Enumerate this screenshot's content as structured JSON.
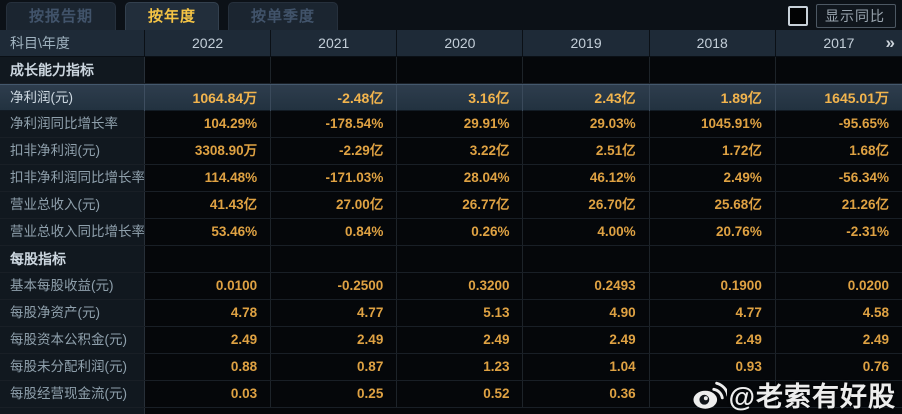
{
  "tabs": [
    {
      "label": "按报告期",
      "active": false
    },
    {
      "label": "按年度",
      "active": true
    },
    {
      "label": "按单季度",
      "active": false
    }
  ],
  "controls": {
    "compare_label": "显示同比",
    "checkbox_checked": false
  },
  "table": {
    "corner_header": "科目\\年度",
    "year_columns": [
      "2022",
      "2021",
      "2020",
      "2019",
      "2018",
      "2017"
    ],
    "more_years_icon": "»",
    "rows": [
      {
        "type": "section",
        "label": "成长能力指标",
        "values": [
          "",
          "",
          "",
          "",
          "",
          ""
        ]
      },
      {
        "type": "data",
        "highlight": true,
        "label": "净利润(元)",
        "values": [
          "1064.84万",
          "-2.48亿",
          "3.16亿",
          "2.43亿",
          "1.89亿",
          "1645.01万"
        ]
      },
      {
        "type": "data",
        "label": "净利润同比增长率",
        "values": [
          "104.29%",
          "-178.54%",
          "29.91%",
          "29.03%",
          "1045.91%",
          "-95.65%"
        ]
      },
      {
        "type": "data",
        "label": "扣非净利润(元)",
        "values": [
          "3308.90万",
          "-2.29亿",
          "3.22亿",
          "2.51亿",
          "1.72亿",
          "1.68亿"
        ]
      },
      {
        "type": "data",
        "label": "扣非净利润同比增长率",
        "values": [
          "114.48%",
          "-171.03%",
          "28.04%",
          "46.12%",
          "2.49%",
          "-56.34%"
        ]
      },
      {
        "type": "data",
        "label": "营业总收入(元)",
        "values": [
          "41.43亿",
          "27.00亿",
          "26.77亿",
          "26.70亿",
          "25.68亿",
          "21.26亿"
        ]
      },
      {
        "type": "data",
        "label": "营业总收入同比增长率",
        "values": [
          "53.46%",
          "0.84%",
          "0.26%",
          "4.00%",
          "20.76%",
          "-2.31%"
        ]
      },
      {
        "type": "section",
        "label": "每股指标",
        "values": [
          "",
          "",
          "",
          "",
          "",
          ""
        ]
      },
      {
        "type": "data",
        "label": "基本每股收益(元)",
        "values": [
          "0.0100",
          "-0.2500",
          "0.3200",
          "0.2493",
          "0.1900",
          "0.0200"
        ]
      },
      {
        "type": "data",
        "label": "每股净资产(元)",
        "values": [
          "4.78",
          "4.77",
          "5.13",
          "4.90",
          "4.77",
          "4.58"
        ]
      },
      {
        "type": "data",
        "label": "每股资本公积金(元)",
        "values": [
          "2.49",
          "2.49",
          "2.49",
          "2.49",
          "2.49",
          "2.49"
        ]
      },
      {
        "type": "data",
        "label": "每股未分配利润(元)",
        "values": [
          "0.88",
          "0.87",
          "1.23",
          "1.04",
          "0.93",
          "0.76"
        ]
      },
      {
        "type": "data",
        "label": "每股经营现金流(元)",
        "values": [
          "0.03",
          "0.25",
          "0.52",
          "0.36",
          "",
          ""
        ]
      }
    ]
  },
  "watermark": {
    "icon": "weibo-icon",
    "text": "@老索有好股"
  },
  "colors": {
    "value_gold": "#dfa243",
    "highlight_gold": "#f2b44d",
    "tab_active_text": "#f5c445",
    "header_bg": "#1e2a37",
    "highlight_row_bg": "#2a3a49",
    "label_column_bg": "#11181f"
  }
}
